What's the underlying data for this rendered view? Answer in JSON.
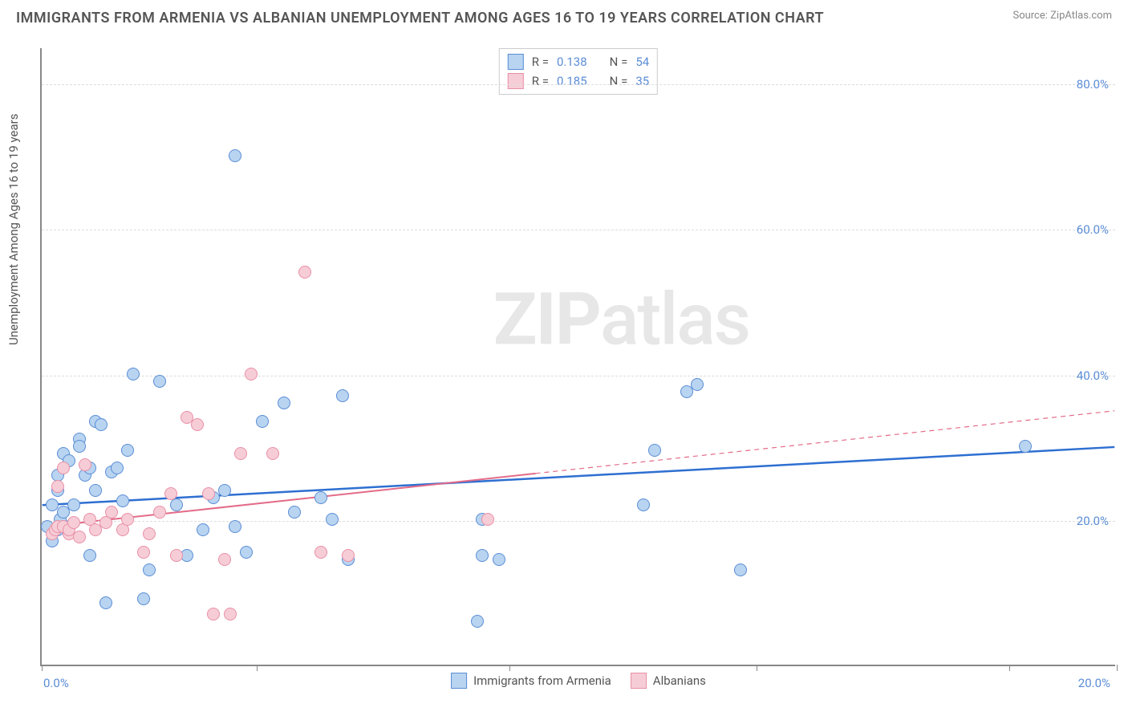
{
  "title": "IMMIGRANTS FROM ARMENIA VS ALBANIAN UNEMPLOYMENT AMONG AGES 16 TO 19 YEARS CORRELATION CHART",
  "source_label": "Source: ZipAtlas.com",
  "y_axis_label": "Unemployment Among Ages 16 to 19 years",
  "watermark": {
    "bold": "ZIP",
    "rest": "atlas"
  },
  "chart": {
    "type": "scatter",
    "background_color": "#ffffff",
    "grid_color": "#dddddd",
    "grid_dash": "6,6",
    "axis_color": "#888888",
    "xlim": [
      0,
      20
    ],
    "ylim": [
      0,
      85
    ],
    "x_ticks": [
      0,
      4.0,
      8.7,
      13.3,
      18.0,
      20.0
    ],
    "x_tick_labels": {
      "left": "0.0%",
      "right": "20.0%"
    },
    "y_ticks": [
      20,
      40,
      60,
      80
    ],
    "y_tick_labels": [
      "20.0%",
      "40.0%",
      "60.0%",
      "80.0%"
    ],
    "point_radius": 8,
    "point_border_width": 1.5,
    "series": [
      {
        "name": "Immigrants from Armenia",
        "fill": "#b8d4f0",
        "stroke": "#5b8dd6",
        "trend_color": "#2e6fd1",
        "trend_width": 2.5,
        "trend_dash_after_x": null,
        "R_label": "R =",
        "R": "0.138",
        "N_label": "N =",
        "N": "54",
        "trend": {
          "x1": 0,
          "y1": 22,
          "x2": 20,
          "y2": 30
        },
        "points": [
          [
            0.1,
            19
          ],
          [
            0.2,
            22
          ],
          [
            0.2,
            17
          ],
          [
            0.3,
            18.5
          ],
          [
            0.3,
            24
          ],
          [
            0.3,
            26
          ],
          [
            0.35,
            20
          ],
          [
            0.4,
            21
          ],
          [
            0.4,
            29
          ],
          [
            0.5,
            19
          ],
          [
            0.5,
            28
          ],
          [
            0.6,
            22
          ],
          [
            0.7,
            31
          ],
          [
            0.7,
            30
          ],
          [
            0.8,
            26
          ],
          [
            0.9,
            15
          ],
          [
            0.9,
            27
          ],
          [
            1.0,
            33.5
          ],
          [
            1.0,
            24
          ],
          [
            1.1,
            33
          ],
          [
            1.2,
            8.5
          ],
          [
            1.3,
            26.5
          ],
          [
            1.4,
            27
          ],
          [
            1.5,
            22.5
          ],
          [
            1.6,
            29.5
          ],
          [
            1.7,
            40
          ],
          [
            1.9,
            9
          ],
          [
            2.0,
            13
          ],
          [
            2.2,
            39
          ],
          [
            2.5,
            22
          ],
          [
            2.7,
            15
          ],
          [
            3.0,
            18.5
          ],
          [
            3.2,
            23
          ],
          [
            3.4,
            24
          ],
          [
            3.6,
            19
          ],
          [
            3.6,
            70
          ],
          [
            3.8,
            15.5
          ],
          [
            4.1,
            33.5
          ],
          [
            4.5,
            36
          ],
          [
            4.7,
            21
          ],
          [
            5.2,
            23
          ],
          [
            5.4,
            20
          ],
          [
            5.6,
            37
          ],
          [
            5.7,
            14.5
          ],
          [
            8.1,
            6
          ],
          [
            8.2,
            15
          ],
          [
            8.2,
            20
          ],
          [
            8.5,
            14.5
          ],
          [
            11.2,
            22
          ],
          [
            11.4,
            29.5
          ],
          [
            12.0,
            37.5
          ],
          [
            12.2,
            38.5
          ],
          [
            13.0,
            13
          ],
          [
            18.3,
            30
          ]
        ]
      },
      {
        "name": "Albanians",
        "fill": "#f6cdd7",
        "stroke": "#e98fa5",
        "trend_color": "#e36b88",
        "trend_width": 2,
        "trend_dash_after_x": 9.2,
        "R_label": "R =",
        "R": "0.185",
        "N_label": "N =",
        "N": "35",
        "trend": {
          "x1": 0,
          "y1": 19,
          "x2": 20,
          "y2": 35
        },
        "points": [
          [
            0.2,
            18
          ],
          [
            0.25,
            18.5
          ],
          [
            0.3,
            24.5
          ],
          [
            0.3,
            19
          ],
          [
            0.4,
            19
          ],
          [
            0.4,
            27
          ],
          [
            0.5,
            18
          ],
          [
            0.5,
            18.5
          ],
          [
            0.6,
            19.5
          ],
          [
            0.7,
            17.5
          ],
          [
            0.8,
            27.5
          ],
          [
            0.9,
            20
          ],
          [
            1.0,
            18.5
          ],
          [
            1.2,
            19.5
          ],
          [
            1.3,
            21
          ],
          [
            1.5,
            18.5
          ],
          [
            1.6,
            20
          ],
          [
            1.9,
            15.5
          ],
          [
            2.0,
            18
          ],
          [
            2.2,
            21
          ],
          [
            2.4,
            23.5
          ],
          [
            2.5,
            15
          ],
          [
            2.7,
            34
          ],
          [
            2.9,
            33
          ],
          [
            3.1,
            23.5
          ],
          [
            3.2,
            7
          ],
          [
            3.4,
            14.5
          ],
          [
            3.5,
            7
          ],
          [
            3.7,
            29
          ],
          [
            3.9,
            40
          ],
          [
            4.3,
            29
          ],
          [
            4.9,
            54
          ],
          [
            5.2,
            15.5
          ],
          [
            5.7,
            15
          ],
          [
            8.3,
            20
          ]
        ]
      }
    ]
  },
  "legend_bottom": [
    {
      "label": "Immigrants from Armenia",
      "fill": "#b8d4f0",
      "stroke": "#5b8dd6"
    },
    {
      "label": "Albanians",
      "fill": "#f6cdd7",
      "stroke": "#e98fa5"
    }
  ]
}
